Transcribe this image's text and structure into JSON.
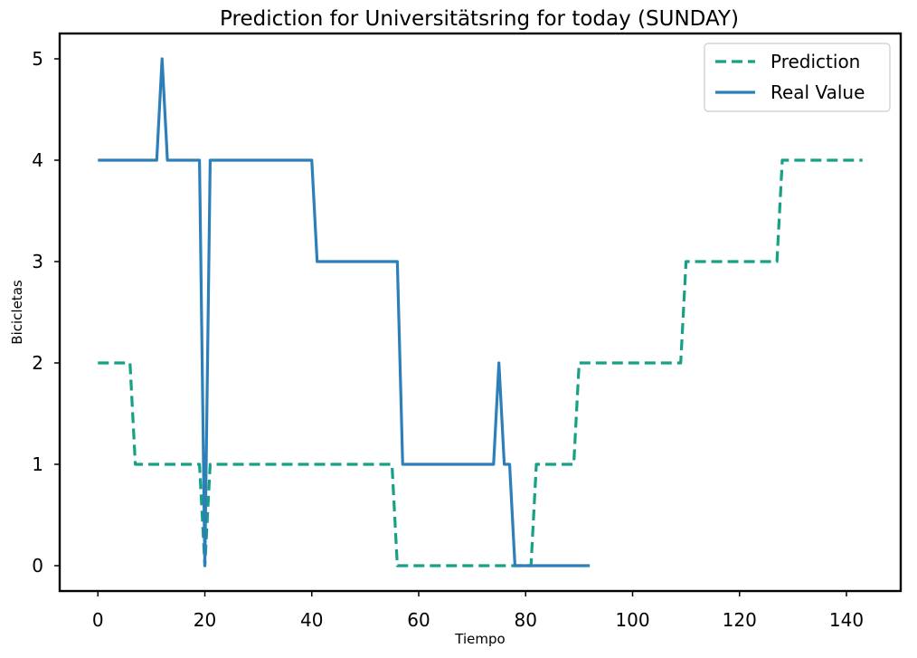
{
  "chart_data": {
    "type": "line",
    "title": "Prediction for Universitätsring for today (SUNDAY)",
    "xlabel": "Tiempo",
    "ylabel": "Bicicletas",
    "xlim": [
      -7.15,
      150.15
    ],
    "ylim": [
      -0.25,
      5.25
    ],
    "xticks": [
      0,
      20,
      40,
      60,
      80,
      100,
      120,
      140
    ],
    "yticks": [
      0,
      1,
      2,
      3,
      4,
      5
    ],
    "grid": false,
    "legend_position": "top-right",
    "series": [
      {
        "name": "Prediction",
        "color": "#16a085",
        "style": "dashed",
        "x": [
          0,
          6,
          7,
          19,
          20,
          21,
          55,
          56,
          81,
          82,
          89,
          90,
          109,
          110,
          127,
          128,
          143
        ],
        "y": [
          2,
          2,
          1,
          1,
          0,
          1,
          1,
          0,
          0,
          1,
          1,
          2,
          2,
          3,
          3,
          4,
          4
        ]
      },
      {
        "name": "Real Value",
        "color": "#2c7fb8",
        "style": "solid",
        "x": [
          0,
          11,
          12,
          13,
          19,
          20,
          21,
          40,
          41,
          56,
          57,
          74,
          75,
          76,
          77,
          78,
          92
        ],
        "y": [
          4,
          4,
          5,
          4,
          4,
          0,
          4,
          4,
          3,
          3,
          1,
          1,
          2,
          1,
          1,
          0,
          0
        ]
      }
    ]
  }
}
